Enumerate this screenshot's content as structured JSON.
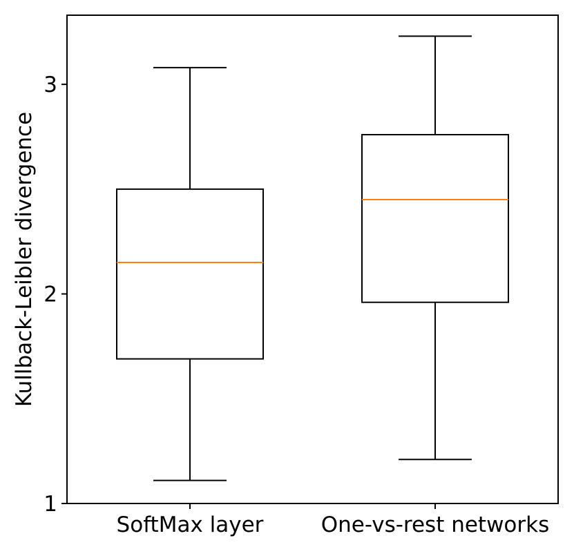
{
  "chart_data": {
    "type": "box",
    "title": "",
    "xlabel": "",
    "ylabel": "Kullback-Leibler divergence",
    "ylim": [
      1.0,
      3.33
    ],
    "yticks": [
      1,
      2,
      3
    ],
    "ytick_labels": [
      "1",
      "2",
      "3"
    ],
    "categories": [
      "SoftMax layer",
      "One-vs-rest networks"
    ],
    "boxes": [
      {
        "label": "SoftMax layer",
        "whisker_low": 1.11,
        "q1": 1.69,
        "median": 2.15,
        "q3": 2.5,
        "whisker_high": 3.08
      },
      {
        "label": "One-vs-rest networks",
        "whisker_low": 1.21,
        "q1": 1.96,
        "median": 2.45,
        "q3": 2.76,
        "whisker_high": 3.23
      }
    ],
    "grid": false,
    "colors": {
      "box": "#000000",
      "median": "#ff7f0e",
      "axis": "#000000"
    }
  }
}
